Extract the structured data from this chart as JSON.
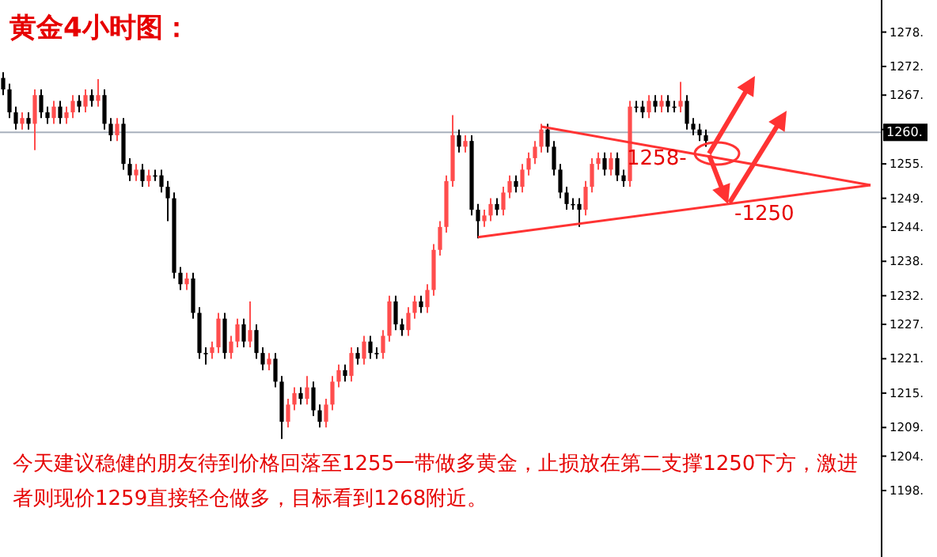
{
  "chart_data": {
    "type": "candlestick",
    "title": "黄金4小时图：",
    "annotations": [
      "今天建议稳健的朋友待到价格回落至1255一带做多黄金，止损放在第二支撑1250下方，激进者则现价1259直接轻仓做多，目标看到1268附近。",
      "1258-",
      "-1250"
    ],
    "categories": [
      null,
      null,
      null,
      null,
      null,
      null,
      null,
      null,
      null,
      null,
      null,
      null,
      null,
      null,
      null,
      null,
      null,
      null,
      null,
      null,
      null,
      null,
      null,
      null,
      null,
      null,
      null,
      null,
      null,
      null,
      null,
      null,
      null,
      null,
      null,
      null,
      null,
      null,
      null,
      null,
      null,
      null,
      null,
      null,
      null,
      null,
      null,
      null,
      null,
      null,
      null,
      null,
      null,
      null,
      null,
      null,
      null,
      null,
      null,
      null,
      null,
      null,
      null,
      null,
      null,
      null,
      null,
      null,
      null,
      null,
      null,
      null,
      null,
      null,
      null,
      null,
      null,
      null,
      null,
      null,
      null,
      null,
      null,
      null,
      null,
      null,
      null,
      null,
      null,
      null,
      null,
      null,
      null,
      null,
      null,
      null,
      null,
      null,
      null,
      null,
      null,
      null,
      null,
      null,
      null,
      null,
      null,
      null,
      null,
      null,
      null,
      null,
      null,
      null,
      null,
      null,
      null,
      null,
      null,
      null,
      null,
      null,
      null,
      null,
      null,
      null,
      null,
      null,
      null,
      null,
      null,
      null,
      null,
      null,
      null,
      null,
      null,
      null
    ],
    "ohlc": [
      [
        1270,
        1271,
        1267,
        1268
      ],
      [
        1268,
        1269,
        1263,
        1264
      ],
      [
        1264,
        1265,
        1261,
        1262
      ],
      [
        1262,
        1264,
        1261,
        1263
      ],
      [
        1263,
        1264,
        1261,
        1262
      ],
      [
        1262,
        1268,
        1257.4,
        1267
      ],
      [
        1267,
        1268,
        1263,
        1264
      ],
      [
        1264,
        1265,
        1262,
        1263
      ],
      [
        1263,
        1266,
        1262,
        1265
      ],
      [
        1265,
        1266,
        1262,
        1263
      ],
      [
        1263,
        1265,
        1262,
        1264
      ],
      [
        1264,
        1267,
        1263,
        1266
      ],
      [
        1266,
        1267,
        1264,
        1265
      ],
      [
        1265,
        1268,
        1264,
        1267
      ],
      [
        1267,
        1268,
        1265,
        1266
      ],
      [
        1266,
        1269.8,
        1265,
        1267
      ],
      [
        1267,
        1268,
        1261,
        1262
      ],
      [
        1262,
        1263,
        1259,
        1260
      ],
      [
        1260,
        1263,
        1259,
        1262
      ],
      [
        1262,
        1263,
        1254,
        1255
      ],
      [
        1255,
        1256,
        1252,
        1253
      ],
      [
        1253,
        1255,
        1252,
        1254
      ],
      [
        1254,
        1255,
        1251,
        1252
      ],
      [
        1252,
        1254,
        1251,
        1253
      ],
      [
        1253,
        1254,
        1252,
        1253
      ],
      [
        1253,
        1254,
        1250,
        1251
      ],
      [
        1251,
        1252,
        1245,
        1249
      ],
      [
        1249,
        1250,
        1235,
        1236
      ],
      [
        1236,
        1237,
        1233,
        1234
      ],
      [
        1234,
        1236,
        1233,
        1235
      ],
      [
        1235,
        1236,
        1228,
        1229
      ],
      [
        1229,
        1230,
        1221,
        1222
      ],
      [
        1222,
        1223,
        1220,
        1222
      ],
      [
        1222,
        1224,
        1221,
        1223
      ],
      [
        1223,
        1229,
        1222,
        1228
      ],
      [
        1228,
        1229,
        1221,
        1222
      ],
      [
        1222,
        1225,
        1221,
        1224
      ],
      [
        1224,
        1228,
        1223,
        1227
      ],
      [
        1227,
        1228,
        1223,
        1224
      ],
      [
        1224,
        1231,
        1223,
        1226
      ],
      [
        1226,
        1227,
        1221,
        1222
      ],
      [
        1222,
        1223,
        1219,
        1220
      ],
      [
        1220,
        1222,
        1219,
        1221
      ],
      [
        1221,
        1222,
        1216,
        1217
      ],
      [
        1217,
        1218,
        1207,
        1210
      ],
      [
        1210,
        1214,
        1209,
        1213
      ],
      [
        1213,
        1216,
        1212,
        1215
      ],
      [
        1215,
        1216,
        1213,
        1214
      ],
      [
        1214,
        1218,
        1213,
        1216
      ],
      [
        1216,
        1217,
        1211,
        1212
      ],
      [
        1212,
        1213,
        1209,
        1210
      ],
      [
        1210,
        1214,
        1209,
        1213
      ],
      [
        1213,
        1218,
        1212,
        1217
      ],
      [
        1217,
        1220,
        1216,
        1219
      ],
      [
        1219,
        1220,
        1217,
        1218
      ],
      [
        1218,
        1223,
        1217,
        1222
      ],
      [
        1222,
        1223,
        1220,
        1221
      ],
      [
        1221,
        1225,
        1220,
        1224
      ],
      [
        1224,
        1225,
        1221,
        1222
      ],
      [
        1222,
        1223,
        1221,
        1222
      ],
      [
        1222,
        1226,
        1221,
        1225
      ],
      [
        1225,
        1232,
        1224,
        1231
      ],
      [
        1231,
        1232,
        1226,
        1227
      ],
      [
        1227,
        1228,
        1225,
        1226
      ],
      [
        1226,
        1230,
        1225,
        1229
      ],
      [
        1229,
        1232,
        1228,
        1231
      ],
      [
        1231,
        1232,
        1229,
        1230
      ],
      [
        1230,
        1234,
        1229,
        1233
      ],
      [
        1233,
        1241,
        1232,
        1240
      ],
      [
        1240,
        1245,
        1239,
        1244
      ],
      [
        1244,
        1253,
        1243,
        1252
      ],
      [
        1252,
        1263.5,
        1251,
        1260
      ],
      [
        1260,
        1261,
        1257,
        1258
      ],
      [
        1258,
        1260,
        1257,
        1259
      ],
      [
        1259,
        1260,
        1246,
        1247
      ],
      [
        1247,
        1248,
        1242,
        1245
      ],
      [
        1245,
        1247,
        1244,
        1246
      ],
      [
        1246,
        1249,
        1245,
        1248
      ],
      [
        1248,
        1249,
        1246,
        1247
      ],
      [
        1247,
        1251,
        1246,
        1250
      ],
      [
        1250,
        1253,
        1249,
        1252
      ],
      [
        1252,
        1253,
        1250,
        1251
      ],
      [
        1251,
        1255,
        1250,
        1254
      ],
      [
        1254,
        1257,
        1253,
        1256
      ],
      [
        1256,
        1259,
        1255,
        1258
      ],
      [
        1258,
        1262,
        1257,
        1261
      ],
      [
        1261,
        1262,
        1257,
        1258
      ],
      [
        1258,
        1259,
        1253,
        1254
      ],
      [
        1254,
        1255,
        1249,
        1250
      ],
      [
        1250,
        1251,
        1247,
        1248
      ],
      [
        1248,
        1249,
        1247,
        1248
      ],
      [
        1248,
        1249,
        1244,
        1247
      ],
      [
        1247,
        1252,
        1246,
        1251
      ],
      [
        1251,
        1256,
        1250,
        1255
      ],
      [
        1255,
        1257,
        1254,
        1256
      ],
      [
        1256,
        1257,
        1253,
        1254
      ],
      [
        1254,
        1257,
        1253,
        1256
      ],
      [
        1256,
        1257,
        1252,
        1253
      ],
      [
        1253,
        1254,
        1251,
        1252
      ],
      [
        1252,
        1266,
        1251,
        1265
      ],
      [
        1265,
        1266,
        1264,
        1265
      ],
      [
        1265,
        1266,
        1263,
        1264
      ],
      [
        1264,
        1267,
        1263,
        1266
      ],
      [
        1266,
        1267,
        1264,
        1265
      ],
      [
        1265,
        1267,
        1264,
        1266
      ],
      [
        1266,
        1267,
        1264,
        1265
      ],
      [
        1265,
        1266,
        1264,
        1265
      ],
      [
        1265,
        1269.3,
        1264,
        1266
      ],
      [
        1266,
        1267,
        1261,
        1262
      ],
      [
        1262,
        1263,
        1260,
        1261
      ],
      [
        1261,
        1262,
        1259,
        1260
      ],
      [
        1260,
        1261,
        1258,
        1259
      ],
      null,
      null,
      null,
      null,
      null,
      null,
      null,
      null,
      null,
      null,
      null,
      null,
      null,
      null,
      null,
      null,
      null,
      null,
      null,
      null,
      null,
      null,
      null,
      null,
      null,
      null
    ],
    "series": [
      {
        "type": "line",
        "color": "#ff3333",
        "values": [
          null,
          null,
          null,
          null,
          null,
          null,
          null,
          null,
          null,
          null,
          null,
          null,
          null,
          null,
          null,
          null,
          null,
          null,
          null,
          null,
          null,
          null,
          null,
          null,
          null,
          null,
          null,
          null,
          null,
          null,
          null,
          null,
          null,
          null,
          null,
          null,
          null,
          null,
          null,
          null,
          null,
          null,
          null,
          null,
          null,
          null,
          null,
          null,
          null,
          null,
          null,
          null,
          null,
          null,
          null,
          null,
          null,
          null,
          null,
          null,
          null,
          null,
          null,
          null,
          null,
          null,
          null,
          null,
          null,
          null,
          null,
          null,
          null,
          null,
          null,
          null,
          null,
          null,
          null,
          null,
          null,
          null,
          null,
          null,
          null,
          1261.5,
          null,
          null,
          null,
          null,
          null,
          null,
          null,
          null,
          null,
          null,
          null,
          null,
          null,
          null,
          null,
          null,
          null,
          null,
          null,
          null,
          null,
          null,
          null,
          null,
          null,
          null,
          null,
          null,
          null,
          null,
          null,
          null,
          null,
          null,
          null,
          null,
          null,
          null,
          null,
          null,
          null,
          null,
          null,
          null,
          null,
          null,
          null,
          null,
          null,
          null,
          null,
          1251.3
        ]
      },
      {
        "type": "line",
        "color": "#ff3333",
        "values": [
          null,
          null,
          null,
          null,
          null,
          null,
          null,
          null,
          null,
          null,
          null,
          null,
          null,
          null,
          null,
          null,
          null,
          null,
          null,
          null,
          null,
          null,
          null,
          null,
          null,
          null,
          null,
          null,
          null,
          null,
          null,
          null,
          null,
          null,
          null,
          null,
          null,
          null,
          null,
          null,
          null,
          null,
          null,
          null,
          null,
          null,
          null,
          null,
          null,
          null,
          null,
          null,
          null,
          null,
          null,
          null,
          null,
          null,
          null,
          null,
          null,
          null,
          null,
          null,
          null,
          null,
          null,
          null,
          null,
          null,
          null,
          null,
          null,
          null,
          null,
          1242.2,
          null,
          null,
          null,
          null,
          null,
          null,
          null,
          null,
          null,
          null,
          null,
          null,
          null,
          null,
          null,
          null,
          null,
          null,
          null,
          null,
          null,
          null,
          null,
          null,
          null,
          null,
          null,
          null,
          null,
          null,
          null,
          null,
          null,
          null,
          null,
          null,
          null,
          null,
          null,
          null,
          null,
          null,
          null,
          null,
          null,
          null,
          null,
          null,
          null,
          null,
          null,
          null,
          null,
          null,
          null,
          null,
          null,
          null,
          null,
          null,
          null,
          1251.3
        ]
      }
    ],
    "ylim": [
      1186.4,
      1283.6
    ],
    "yticks": [
      {
        "value": 1198,
        "label": "1198."
      },
      {
        "value": 1204,
        "label": "1204."
      },
      {
        "value": 1209,
        "label": "1209."
      },
      {
        "value": 1215,
        "label": "1215."
      },
      {
        "value": 1221,
        "label": "1221."
      },
      {
        "value": 1227,
        "label": "1227."
      },
      {
        "value": 1232,
        "label": "1232."
      },
      {
        "value": 1238,
        "label": "1238."
      },
      {
        "value": 1244,
        "label": "1244."
      },
      {
        "value": 1249,
        "label": "1249."
      },
      {
        "value": 1255,
        "label": "1255."
      },
      {
        "value": 1261,
        "label": null
      },
      {
        "value": 1267,
        "label": "1267."
      },
      {
        "value": 1272,
        "label": "1272."
      },
      {
        "value": 1278,
        "label": "1278."
      }
    ],
    "ref_lines": [
      {
        "axis": "y",
        "value": 1260.5,
        "label": "1260.",
        "color": "#a8b0bc"
      }
    ],
    "tick_labels": "y"
  }
}
